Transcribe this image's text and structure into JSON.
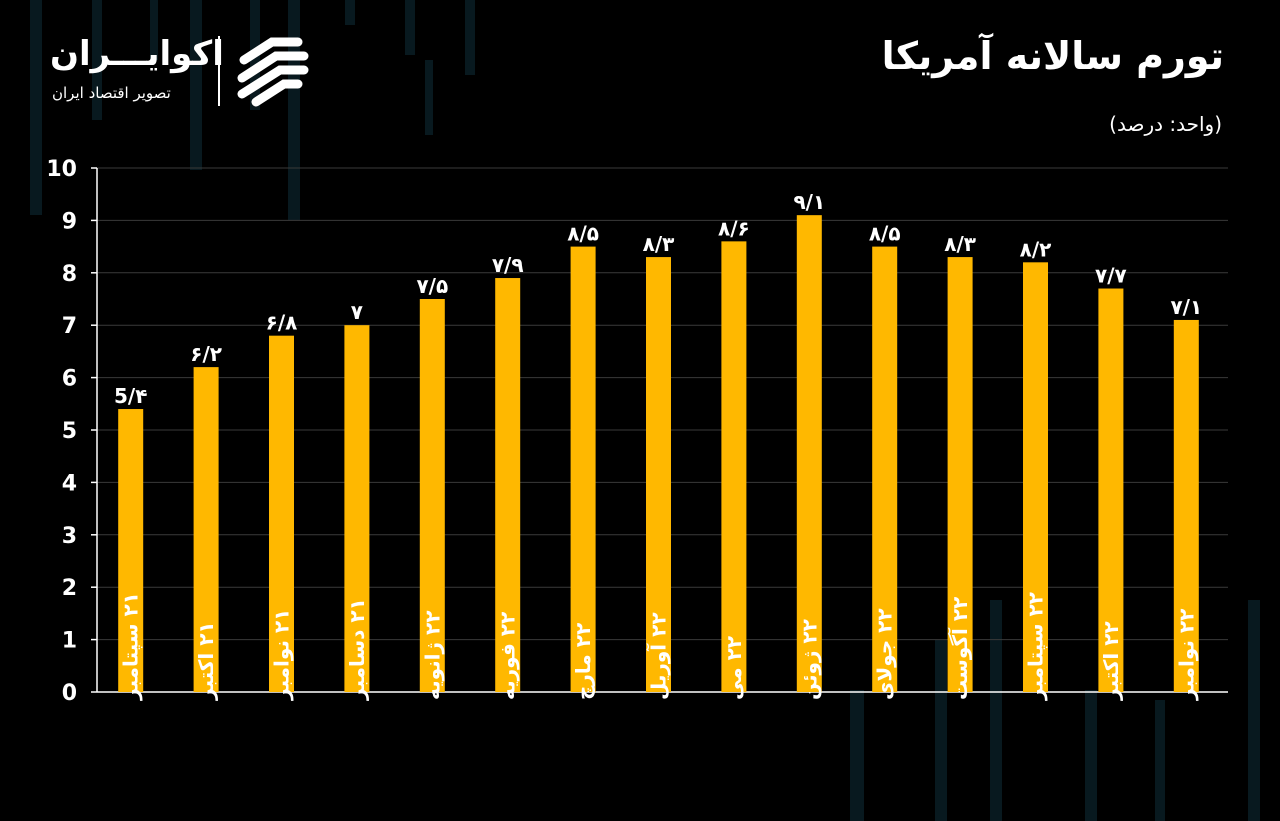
{
  "header": {
    "title": "تورم سالانه آمریکا",
    "unit": "(واحد: درصد)"
  },
  "brand": {
    "name": "اکوایـــران",
    "tagline": "تصویر اقتصاد ایران",
    "logo_icon": "ekoiran-logo-icon"
  },
  "colors": {
    "bar": "#FFB800",
    "background": "#000000",
    "grid": "#3a3a3a",
    "text": "#ffffff"
  },
  "chart_data": {
    "type": "bar",
    "title": "تورم سالانه آمریکا",
    "ylabel": "(واحد: درصد)",
    "xlabel": "",
    "ylim": [
      0,
      10
    ],
    "yticks": [
      0,
      1,
      2,
      3,
      4,
      5,
      6,
      7,
      8,
      9,
      10
    ],
    "ytick_labels": [
      "0",
      "1",
      "2",
      "3",
      "4",
      "5",
      "6",
      "7",
      "8",
      "9",
      "10"
    ],
    "grid": true,
    "categories": [
      "۲۱ سپتامبر",
      "۲۱ اکتبر",
      "۲۱ نوامبر",
      "۲۱ دسامبر",
      "۲۲ ژانویه",
      "۲۲ فوریه",
      "۲۲ مارچ",
      "۲۲ آوریل",
      "۲۲ می",
      "۲۲ ژوئن",
      "۲۲ جولای",
      "۲۲ آگوست",
      "۲۲ سپتامبر",
      "۲۲ اکتبر",
      "۲۲ نوامبر"
    ],
    "values": [
      5.4,
      6.2,
      6.8,
      7.0,
      7.5,
      7.9,
      8.5,
      8.3,
      8.6,
      9.1,
      8.5,
      8.3,
      8.2,
      7.7,
      7.1
    ],
    "data_labels": [
      "5/۴",
      "۶/۲",
      "۶/۸",
      "۷",
      "۷/۵",
      "۷/۹",
      "۸/۵",
      "۸/۳",
      "۸/۶",
      "۹/۱",
      "۸/۵",
      "۸/۳",
      "۸/۲",
      "۷/۷",
      "۷/۱"
    ]
  }
}
